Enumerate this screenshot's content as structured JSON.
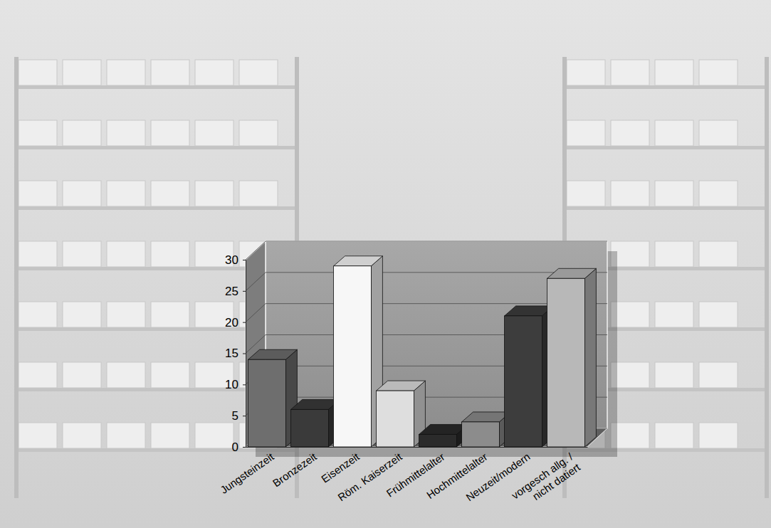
{
  "chart_data": {
    "type": "bar",
    "categories": [
      "Jungsteinzeit",
      "Bronzezeit",
      "Eisenzeit",
      "Röm. Kaiserzeit",
      "Frühmittelalter",
      "Hochmittelalter",
      "Neuzeit/modern",
      "vorgesch allg. / nicht datiert"
    ],
    "values": [
      14,
      6,
      29,
      9,
      2,
      4,
      21,
      27
    ],
    "colors": [
      "#6e6e6e",
      "#3a3a3a",
      "#f7f7f7",
      "#dedede",
      "#2b2b2b",
      "#8c8c8c",
      "#3d3d3d",
      "#b8b8b8"
    ],
    "ylim": [
      0,
      30
    ],
    "yticks": [
      0,
      5,
      10,
      15,
      20,
      25,
      30
    ],
    "grid": true
  }
}
